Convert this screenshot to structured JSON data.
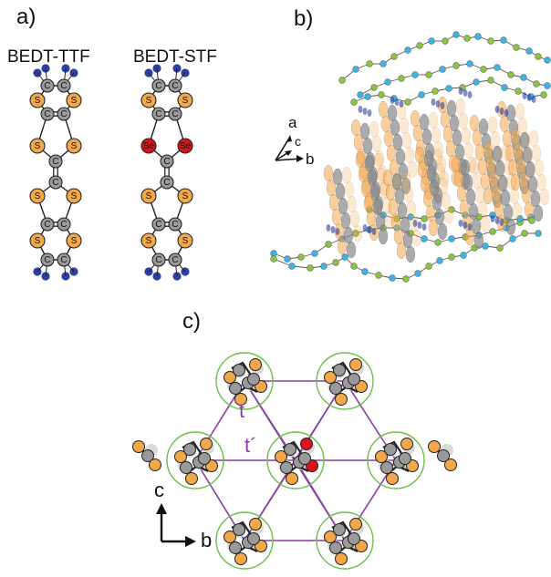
{
  "panels": {
    "a": "a)",
    "b": "b)",
    "c": "c)"
  },
  "molecules": {
    "left_title": "BEDT-TTF",
    "right_title": "BEDT-STF",
    "carbon_symbol": "C",
    "sulfur_symbol": "S",
    "selenium_symbol": "Se"
  },
  "panel_b_axes": {
    "a": "a",
    "b": "b",
    "c": "c"
  },
  "panel_c": {
    "t_label": "t",
    "t_prime_label": "t´",
    "axis_c": "c",
    "axis_b": "b"
  },
  "colors": {
    "carbon": "#9a9a9a",
    "sulfur": "#f2a84a",
    "selenium": "#d8141c",
    "hydrogen": "#2f3f9f",
    "anion_green": "#8cc43c",
    "anion_cyan": "#39b6e6",
    "lattice": "#8a3da6",
    "circle": "#6cbf4a"
  }
}
